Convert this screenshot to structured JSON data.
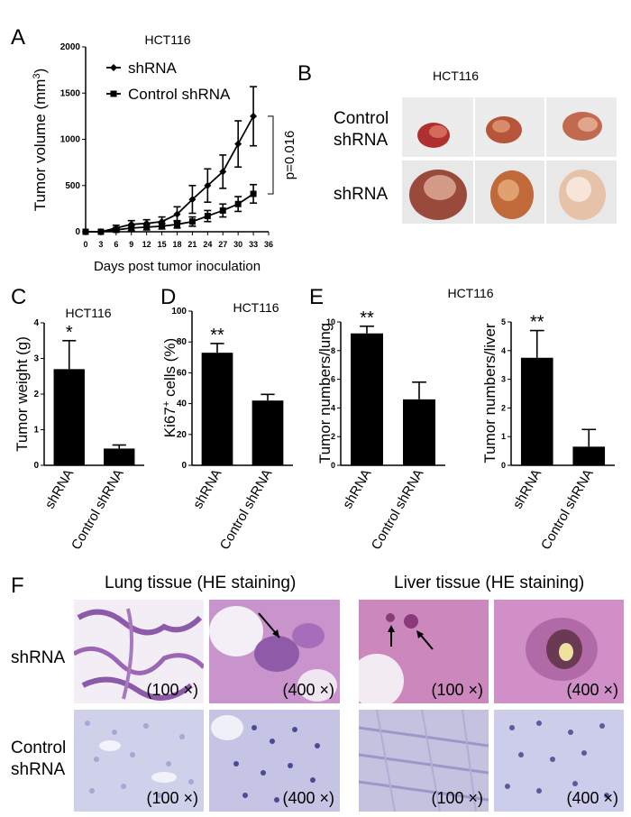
{
  "panels": {
    "A": "A",
    "B": "B",
    "C": "C",
    "D": "D",
    "E": "E",
    "F": "F"
  },
  "chart_data": [
    {
      "panel": "A",
      "type": "line",
      "title": "HCT116",
      "xlabel": "Days post tumor inoculation",
      "ylabel": "Tumor volume (mm3)",
      "ylabel_main": "Tumor volume (mm",
      "ylabel_sup": "3",
      "ylabel_close": ")",
      "x": [
        0,
        3,
        6,
        9,
        12,
        15,
        18,
        21,
        24,
        27,
        30,
        33
      ],
      "xticks": [
        "0",
        "3",
        "6",
        "9",
        "12",
        "15",
        "18",
        "21",
        "24",
        "27",
        "30",
        "33",
        "36"
      ],
      "yticks": [
        "0",
        "500",
        "1000",
        "1500",
        "2000"
      ],
      "xlim": [
        0,
        36
      ],
      "ylim": [
        0,
        2000
      ],
      "series": [
        {
          "name": "shRNA",
          "marker": "diamond",
          "values": [
            0,
            0,
            40,
            80,
            90,
            110,
            190,
            350,
            500,
            650,
            950,
            1250
          ],
          "err": [
            0,
            0,
            30,
            40,
            40,
            50,
            80,
            150,
            180,
            180,
            250,
            320
          ]
        },
        {
          "name": "Control shRNA",
          "marker": "square",
          "values": [
            0,
            0,
            20,
            40,
            50,
            60,
            80,
            110,
            170,
            230,
            300,
            410
          ],
          "err": [
            0,
            0,
            20,
            30,
            30,
            30,
            40,
            50,
            60,
            70,
            80,
            100
          ]
        }
      ],
      "annotation": "p=0.016"
    },
    {
      "panel": "C",
      "type": "bar",
      "title": "HCT116",
      "ylabel": "Tumor weight (g)",
      "categories": [
        "shRNA",
        "Control shRNA"
      ],
      "values": [
        2.7,
        0.47
      ],
      "err": [
        0.8,
        0.1
      ],
      "ylim": [
        0,
        4
      ],
      "yticks": [
        "0",
        "1",
        "2",
        "3",
        "4"
      ],
      "significance": [
        "*",
        ""
      ]
    },
    {
      "panel": "D",
      "type": "bar",
      "title": "HCT116",
      "ylabel": "Ki67+ cells (%)",
      "ylabel_main": "Ki67",
      "ylabel_sup": "+",
      "ylabel_rest": " cells (%)",
      "categories": [
        "shRNA",
        "Control shRNA"
      ],
      "values": [
        73,
        42
      ],
      "err": [
        6,
        4
      ],
      "ylim": [
        0,
        100
      ],
      "yticks": [
        "0",
        "20",
        "40",
        "60",
        "80",
        "100"
      ],
      "significance": [
        "**",
        ""
      ]
    },
    {
      "panel": "E-lung",
      "type": "bar",
      "title": "HCT116",
      "ylabel": "Tumor numbers/lung",
      "categories": [
        "shRNA",
        "Control shRNA"
      ],
      "values": [
        9.2,
        4.6
      ],
      "err": [
        0.5,
        1.2
      ],
      "ylim": [
        0,
        10
      ],
      "yticks": [
        "0",
        "2",
        "4",
        "6",
        "8",
        "10"
      ],
      "significance": [
        "**",
        ""
      ]
    },
    {
      "panel": "E-liver",
      "type": "bar",
      "ylabel": "Tumor numbers/liver",
      "categories": [
        "shRNA",
        "Control shRNA"
      ],
      "values": [
        3.75,
        0.65
      ],
      "err": [
        0.95,
        0.6
      ],
      "ylim": [
        0,
        5
      ],
      "yticks": [
        "0",
        "1",
        "2",
        "3",
        "4",
        "5"
      ],
      "significance": [
        "**",
        ""
      ]
    }
  ],
  "panel_b": {
    "title": "HCT116",
    "rows": [
      {
        "label_line1": "Control",
        "label_line2": "shRNA"
      },
      {
        "label_line1": "shRNA",
        "label_line2": ""
      }
    ]
  },
  "panel_f": {
    "lung_header": "Lung tissue (HE staining)",
    "liver_header": "Liver tissue (HE staining)",
    "row1_label": "shRNA",
    "row2_label_line1": "Control",
    "row2_label_line2": "shRNA",
    "mag_100": "(100 ×)",
    "mag_400": "(400 ×)"
  },
  "colors": {
    "bar": "#000000",
    "photo_bg": "#f1f1f1",
    "he_pink": "#c48fc4",
    "he_purple": "#8a5aa8",
    "he_blue": "#c9cbe8",
    "he_blue_dark": "#6a6cb8"
  }
}
